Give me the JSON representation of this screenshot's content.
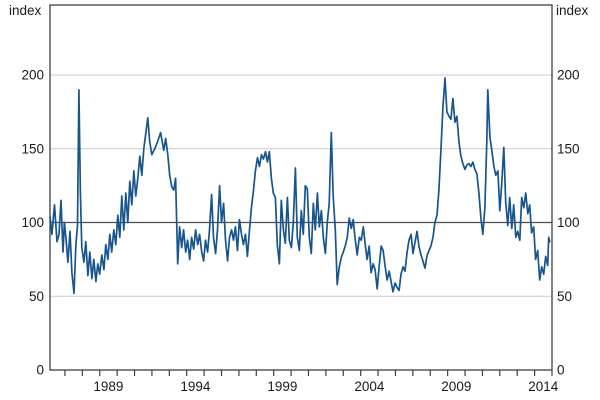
{
  "chart_data": {
    "type": "line",
    "title": "",
    "unit_label_left": "index",
    "unit_label_right": "index",
    "y_axis": {
      "ticks": [
        0,
        50,
        100,
        150,
        200
      ],
      "range": [
        0,
        247.5
      ],
      "grid": true,
      "labels_on_both_sides": true
    },
    "x_axis": {
      "range": [
        1986.14,
        2015.0
      ],
      "minor_tick_years_start": 1987,
      "minor_tick_years_end": 2015,
      "labeled_years": [
        1989,
        1994,
        1999,
        2004,
        2009,
        2014
      ],
      "labels_centered_mid_year": true
    },
    "reference_line_value": 100,
    "legend": "none",
    "series": [
      {
        "name": "index-series",
        "color": "#17558c",
        "points": [
          [
            1986.14,
            104
          ],
          [
            1986.25,
            92
          ],
          [
            1986.4,
            112
          ],
          [
            1986.54,
            87
          ],
          [
            1986.66,
            92
          ],
          [
            1986.77,
            115
          ],
          [
            1986.89,
            80
          ],
          [
            1986.97,
            100
          ],
          [
            1987.06,
            89
          ],
          [
            1987.17,
            73
          ],
          [
            1987.29,
            94
          ],
          [
            1987.4,
            66
          ],
          [
            1987.52,
            52
          ],
          [
            1987.63,
            85
          ],
          [
            1987.72,
            98
          ],
          [
            1987.8,
            190
          ],
          [
            1987.89,
            120
          ],
          [
            1987.97,
            83
          ],
          [
            1988.09,
            73
          ],
          [
            1988.2,
            87
          ],
          [
            1988.32,
            64
          ],
          [
            1988.43,
            80
          ],
          [
            1988.55,
            62
          ],
          [
            1988.66,
            75
          ],
          [
            1988.78,
            60
          ],
          [
            1988.89,
            72
          ],
          [
            1989.0,
            65
          ],
          [
            1989.12,
            78
          ],
          [
            1989.24,
            68
          ],
          [
            1989.35,
            85
          ],
          [
            1989.47,
            75
          ],
          [
            1989.58,
            92
          ],
          [
            1989.69,
            80
          ],
          [
            1989.81,
            95
          ],
          [
            1989.92,
            85
          ],
          [
            1990.04,
            105
          ],
          [
            1990.15,
            90
          ],
          [
            1990.27,
            118
          ],
          [
            1990.38,
            95
          ],
          [
            1990.5,
            120
          ],
          [
            1990.61,
            100
          ],
          [
            1990.73,
            128
          ],
          [
            1990.84,
            112
          ],
          [
            1990.96,
            135
          ],
          [
            1991.07,
            118
          ],
          [
            1991.19,
            130
          ],
          [
            1991.3,
            145
          ],
          [
            1991.42,
            132
          ],
          [
            1991.53,
            150
          ],
          [
            1991.64,
            160
          ],
          [
            1991.76,
            171
          ],
          [
            1991.87,
            155
          ],
          [
            1991.99,
            146
          ],
          [
            1992.16,
            150
          ],
          [
            1992.33,
            155
          ],
          [
            1992.5,
            161
          ],
          [
            1992.68,
            149
          ],
          [
            1992.79,
            157
          ],
          [
            1992.91,
            146
          ],
          [
            1993.02,
            132
          ],
          [
            1993.14,
            124
          ],
          [
            1993.25,
            122
          ],
          [
            1993.36,
            130
          ],
          [
            1993.48,
            72
          ],
          [
            1993.59,
            97
          ],
          [
            1993.71,
            83
          ],
          [
            1993.82,
            95
          ],
          [
            1993.94,
            80
          ],
          [
            1994.05,
            88
          ],
          [
            1994.17,
            75
          ],
          [
            1994.28,
            90
          ],
          [
            1994.4,
            82
          ],
          [
            1994.51,
            95
          ],
          [
            1994.63,
            85
          ],
          [
            1994.74,
            92
          ],
          [
            1994.86,
            80
          ],
          [
            1994.97,
            74
          ],
          [
            1995.08,
            88
          ],
          [
            1995.2,
            80
          ],
          [
            1995.31,
            95
          ],
          [
            1995.43,
            119
          ],
          [
            1995.54,
            90
          ],
          [
            1995.66,
            79
          ],
          [
            1995.77,
            95
          ],
          [
            1995.89,
            125
          ],
          [
            1996.0,
            100
          ],
          [
            1996.12,
            113
          ],
          [
            1996.23,
            88
          ],
          [
            1996.35,
            74
          ],
          [
            1996.46,
            90
          ],
          [
            1996.58,
            95
          ],
          [
            1996.69,
            88
          ],
          [
            1996.8,
            97
          ],
          [
            1996.92,
            81
          ],
          [
            1997.03,
            102
          ],
          [
            1997.15,
            92
          ],
          [
            1997.26,
            85
          ],
          [
            1997.38,
            92
          ],
          [
            1997.49,
            77
          ],
          [
            1997.61,
            95
          ],
          [
            1997.72,
            110
          ],
          [
            1997.84,
            122
          ],
          [
            1997.95,
            135
          ],
          [
            1998.07,
            144
          ],
          [
            1998.18,
            138
          ],
          [
            1998.3,
            146
          ],
          [
            1998.41,
            143
          ],
          [
            1998.53,
            148
          ],
          [
            1998.64,
            141
          ],
          [
            1998.75,
            148
          ],
          [
            1998.87,
            130
          ],
          [
            1998.98,
            120
          ],
          [
            1999.1,
            117
          ],
          [
            1999.21,
            85
          ],
          [
            1999.33,
            72
          ],
          [
            1999.44,
            115
          ],
          [
            1999.56,
            95
          ],
          [
            1999.67,
            86
          ],
          [
            1999.79,
            117
          ],
          [
            1999.9,
            88
          ],
          [
            2000.02,
            83
          ],
          [
            2000.13,
            100
          ],
          [
            2000.25,
            137
          ],
          [
            2000.36,
            90
          ],
          [
            2000.47,
            81
          ],
          [
            2000.59,
            108
          ],
          [
            2000.7,
            92
          ],
          [
            2000.82,
            125
          ],
          [
            2000.93,
            123
          ],
          [
            2001.05,
            90
          ],
          [
            2001.16,
            79
          ],
          [
            2001.28,
            113
          ],
          [
            2001.39,
            95
          ],
          [
            2001.51,
            120
          ],
          [
            2001.62,
            97
          ],
          [
            2001.74,
            108
          ],
          [
            2001.85,
            90
          ],
          [
            2001.97,
            79
          ],
          [
            2002.08,
            100
          ],
          [
            2002.19,
            113
          ],
          [
            2002.31,
            161
          ],
          [
            2002.42,
            118
          ],
          [
            2002.54,
            95
          ],
          [
            2002.65,
            58
          ],
          [
            2002.77,
            70
          ],
          [
            2002.88,
            76
          ],
          [
            2003.0,
            80
          ],
          [
            2003.11,
            84
          ],
          [
            2003.23,
            90
          ],
          [
            2003.34,
            103
          ],
          [
            2003.46,
            96
          ],
          [
            2003.57,
            102
          ],
          [
            2003.69,
            88
          ],
          [
            2003.8,
            78
          ],
          [
            2003.92,
            90
          ],
          [
            2004.03,
            88
          ],
          [
            2004.15,
            97
          ],
          [
            2004.26,
            85
          ],
          [
            2004.37,
            75
          ],
          [
            2004.49,
            84
          ],
          [
            2004.6,
            66
          ],
          [
            2004.72,
            72
          ],
          [
            2004.83,
            68
          ],
          [
            2004.95,
            55
          ],
          [
            2005.06,
            70
          ],
          [
            2005.18,
            84
          ],
          [
            2005.29,
            81
          ],
          [
            2005.41,
            70
          ],
          [
            2005.52,
            61
          ],
          [
            2005.64,
            67
          ],
          [
            2005.75,
            60
          ],
          [
            2005.86,
            53
          ],
          [
            2005.98,
            59
          ],
          [
            2006.09,
            56
          ],
          [
            2006.21,
            54
          ],
          [
            2006.32,
            65
          ],
          [
            2006.44,
            70
          ],
          [
            2006.55,
            67
          ],
          [
            2006.67,
            80
          ],
          [
            2006.78,
            88
          ],
          [
            2006.9,
            92
          ],
          [
            2007.01,
            79
          ],
          [
            2007.13,
            87
          ],
          [
            2007.24,
            94
          ],
          [
            2007.35,
            84
          ],
          [
            2007.47,
            78
          ],
          [
            2007.58,
            74
          ],
          [
            2007.7,
            69
          ],
          [
            2007.81,
            77
          ],
          [
            2007.93,
            81
          ],
          [
            2008.04,
            84
          ],
          [
            2008.16,
            90
          ],
          [
            2008.27,
            100
          ],
          [
            2008.39,
            105
          ],
          [
            2008.5,
            122
          ],
          [
            2008.62,
            150
          ],
          [
            2008.73,
            178
          ],
          [
            2008.85,
            198
          ],
          [
            2008.96,
            175
          ],
          [
            2009.08,
            172
          ],
          [
            2009.19,
            170
          ],
          [
            2009.3,
            184
          ],
          [
            2009.42,
            168
          ],
          [
            2009.53,
            172
          ],
          [
            2009.65,
            155
          ],
          [
            2009.76,
            145
          ],
          [
            2009.88,
            140
          ],
          [
            2009.99,
            136
          ],
          [
            2010.11,
            139
          ],
          [
            2010.22,
            140
          ],
          [
            2010.34,
            138
          ],
          [
            2010.45,
            141
          ],
          [
            2010.57,
            136
          ],
          [
            2010.68,
            133
          ],
          [
            2010.8,
            120
          ],
          [
            2010.91,
            103
          ],
          [
            2011.02,
            92
          ],
          [
            2011.14,
            110
          ],
          [
            2011.25,
            155
          ],
          [
            2011.31,
            190
          ],
          [
            2011.43,
            158
          ],
          [
            2011.54,
            149
          ],
          [
            2011.66,
            138
          ],
          [
            2011.77,
            132
          ],
          [
            2011.89,
            135
          ],
          [
            2012.0,
            108
          ],
          [
            2012.11,
            126
          ],
          [
            2012.23,
            151
          ],
          [
            2012.34,
            114
          ],
          [
            2012.46,
            98
          ],
          [
            2012.57,
            117
          ],
          [
            2012.69,
            96
          ],
          [
            2012.8,
            112
          ],
          [
            2012.92,
            90
          ],
          [
            2013.03,
            94
          ],
          [
            2013.15,
            88
          ],
          [
            2013.26,
            117
          ],
          [
            2013.38,
            110
          ],
          [
            2013.49,
            120
          ],
          [
            2013.61,
            106
          ],
          [
            2013.72,
            112
          ],
          [
            2013.83,
            93
          ],
          [
            2013.95,
            97
          ],
          [
            2014.06,
            75
          ],
          [
            2014.18,
            81
          ],
          [
            2014.29,
            61
          ],
          [
            2014.41,
            70
          ],
          [
            2014.52,
            65
          ],
          [
            2014.64,
            77
          ],
          [
            2014.75,
            71
          ],
          [
            2014.81,
            90
          ],
          [
            2014.87,
            87
          ]
        ]
      }
    ]
  },
  "colors": {
    "line": "#17558c",
    "gridline": "#cccccc",
    "reference_line": "#4d4d4d",
    "frame": "#3f3f3f",
    "text": "#1a1a1a",
    "background": "#ffffff"
  }
}
